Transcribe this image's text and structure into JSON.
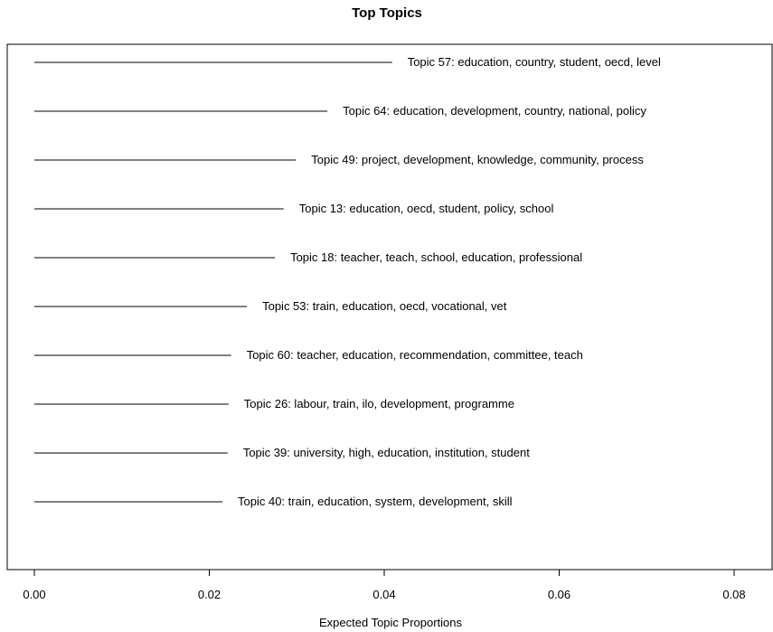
{
  "chart_data": {
    "type": "bar",
    "orientation": "horizontal",
    "title": "Top Topics",
    "xlabel": "Expected Topic Proportions",
    "ylabel": "",
    "xlim": [
      0,
      0.08
    ],
    "xticks": [
      "0.00",
      "0.02",
      "0.04",
      "0.06",
      "0.08"
    ],
    "grid": false,
    "categories": [
      "Topic 57: education, country, student, oecd, level",
      "Topic 64: education, development, country, national, policy",
      "Topic 49: project, development, knowledge, community, process",
      "Topic 13: education, oecd, student, policy, school",
      "Topic 18: teacher, teach, school, education, professional",
      "Topic 53: train, education, oecd, vocational, vet",
      "Topic 60: teacher, education, recommendation, committee, teach",
      "Topic 26: labour, train, ilo, development, programme",
      "Topic 39: university, high, education, institution, student",
      "Topic 40: train, education, system, development, skill"
    ],
    "values": [
      0.0409,
      0.0335,
      0.0299,
      0.0285,
      0.0275,
      0.0243,
      0.0225,
      0.0222,
      0.0221,
      0.0215
    ]
  }
}
